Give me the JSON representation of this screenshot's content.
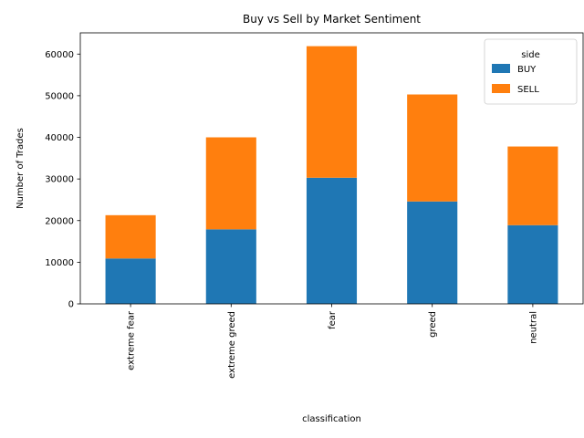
{
  "chart_data": {
    "type": "bar",
    "stacked": true,
    "title": "Buy vs Sell by Market Sentiment",
    "xlabel": "classification",
    "ylabel": "Number of Trades",
    "categories": [
      "extreme fear",
      "extreme greed",
      "fear",
      "greed",
      "neutral"
    ],
    "series": [
      {
        "name": "BUY",
        "values": [
          10900,
          17900,
          30300,
          24600,
          18900
        ],
        "color": "#1f77b4"
      },
      {
        "name": "SELL",
        "values": [
          10400,
          22100,
          31600,
          25700,
          18900
        ],
        "color": "#ff7f0e"
      }
    ],
    "ylim": [
      0,
      65100
    ],
    "yticks": [
      0,
      10000,
      20000,
      30000,
      40000,
      50000,
      60000
    ],
    "ytick_labels": [
      "0",
      "10000",
      "20000",
      "30000",
      "40000",
      "50000",
      "60000"
    ],
    "legend": {
      "title": "side",
      "position": "top-right"
    },
    "grid": false
  }
}
